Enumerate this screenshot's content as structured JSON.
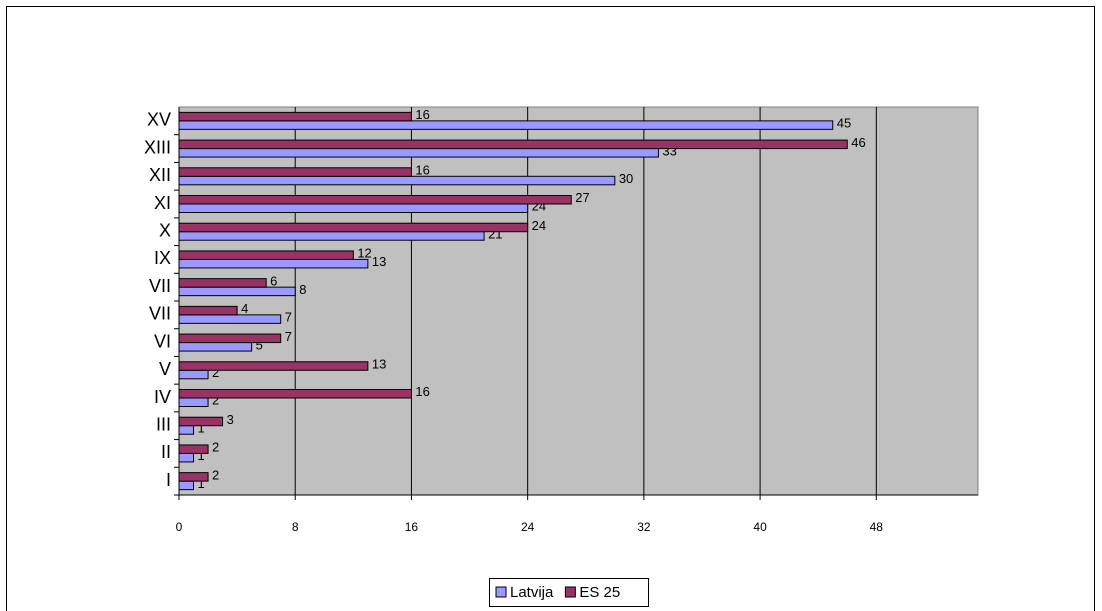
{
  "chart_data": {
    "type": "bar",
    "orientation": "horizontal",
    "categories": [
      "I",
      "II",
      "III",
      "IV",
      "V",
      "VI",
      "VII",
      "VII",
      "IX",
      "X",
      "XI",
      "XII",
      "XIII",
      "XV"
    ],
    "series": [
      {
        "name": "Latvija",
        "color": "#9999ff",
        "values": [
          1,
          1,
          1,
          2,
          2,
          5,
          7,
          8,
          13,
          21,
          24,
          30,
          33,
          45
        ]
      },
      {
        "name": "ES 25",
        "color": "#993366",
        "values": [
          2,
          2,
          3,
          16,
          13,
          7,
          4,
          6,
          12,
          24,
          27,
          16,
          46,
          16
        ]
      }
    ],
    "xlim": [
      0,
      55
    ],
    "xticks": [
      0,
      8,
      16,
      24,
      32,
      40,
      48
    ],
    "grid": true,
    "legend": "bottom",
    "background": "#c0c0c0"
  }
}
